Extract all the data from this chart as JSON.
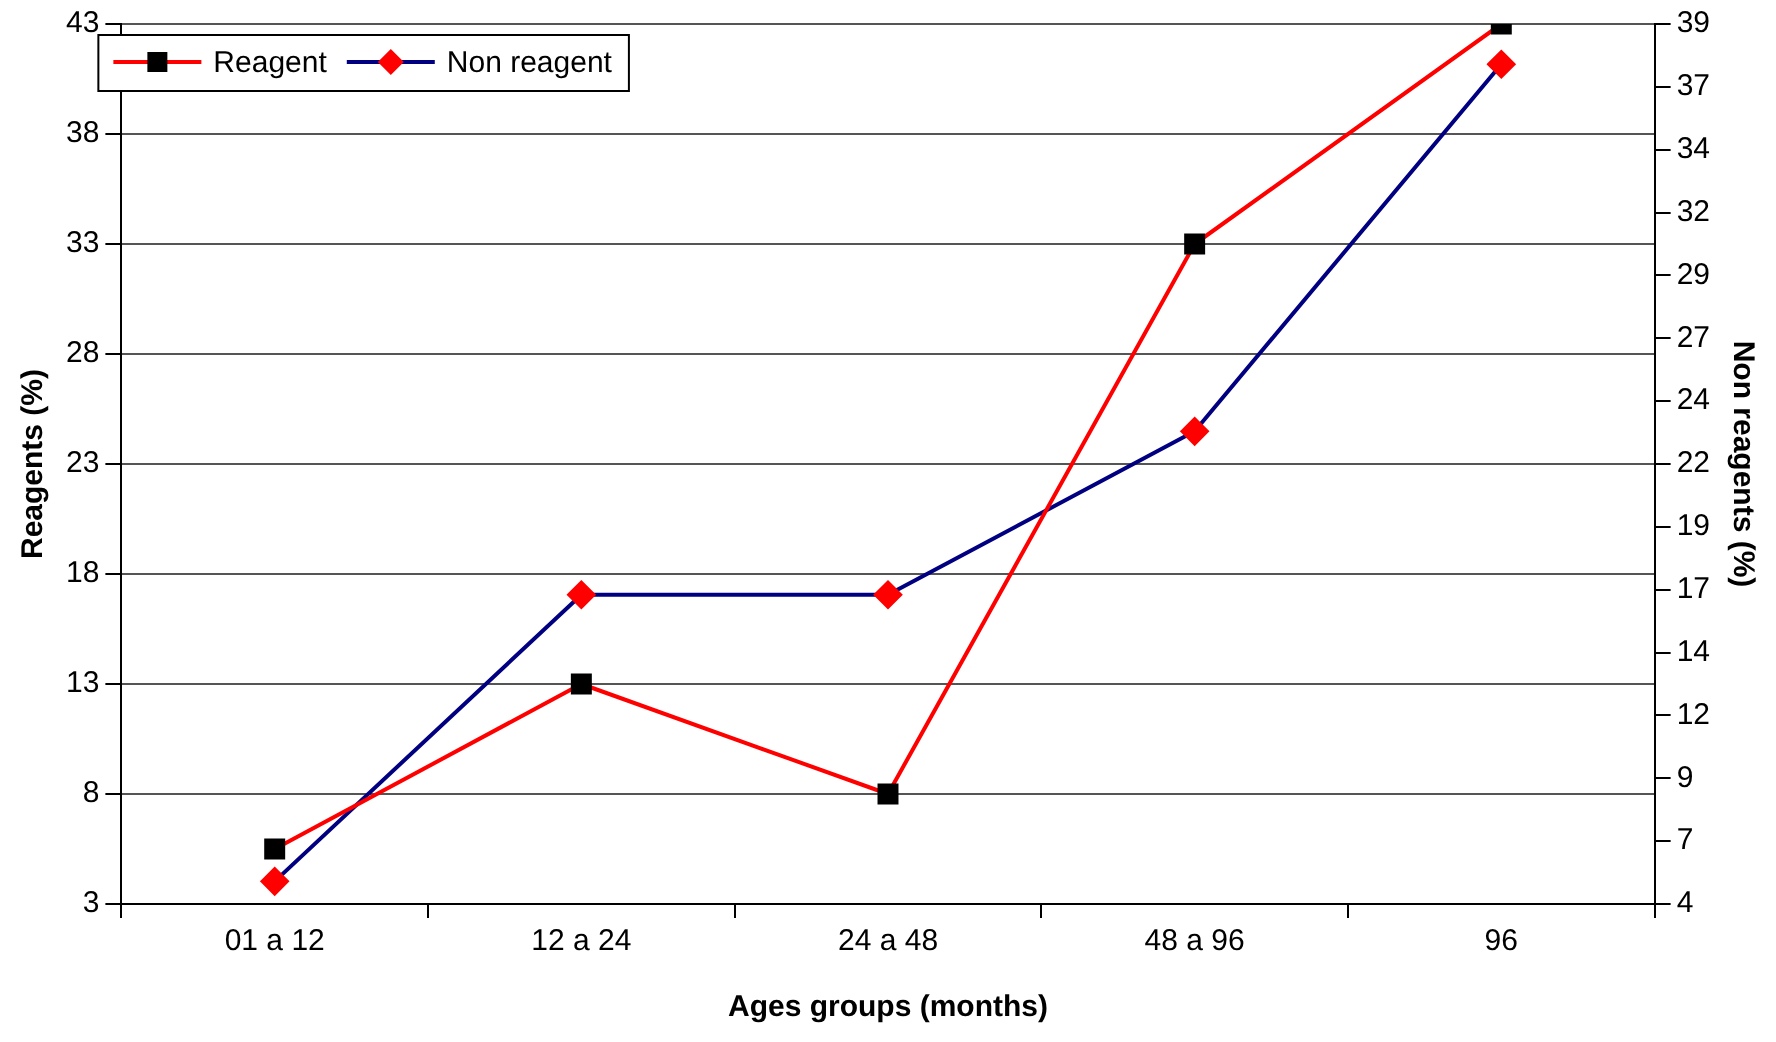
{
  "chart_data": {
    "type": "line",
    "xlabel": "Ages groups (months)",
    "ylabel": "Reagents (%)",
    "y2label": "Non reagents (%)",
    "categories": [
      "01 a 12",
      "12 a 24",
      "24 a 48",
      "48 a 96",
      "96"
    ],
    "series": [
      {
        "name": "Reagent",
        "color": "#ff0000",
        "colors": [
          "#000000",
          "#000000",
          "#000000",
          "#000000",
          "#000000"
        ],
        "marker": "square",
        "values": [
          5.5,
          13,
          8,
          33,
          43
        ]
      },
      {
        "name": "Non reagent",
        "color": "#000080",
        "colors": [
          "#ff0000",
          "#ff0000",
          "#ff0000",
          "#ff0000",
          "#ff0000"
        ],
        "marker": "diamond",
        "axis": "y2",
        "values": [
          4.9,
          16.3,
          16.3,
          22.8,
          37.4
        ]
      }
    ],
    "ylim": [
      3,
      43
    ],
    "yticks": [
      3,
      8,
      13,
      18,
      23,
      28,
      33,
      38,
      43
    ],
    "y2lim": [
      4,
      39
    ],
    "y2ticks": [
      4,
      {
        "value": 6.5,
        "label": "7"
      },
      9,
      {
        "value": 11.5,
        "label": "12"
      },
      14,
      {
        "value": 16.5,
        "label": "17"
      },
      19,
      {
        "value": 21.5,
        "label": "22"
      },
      24,
      {
        "value": 26.5,
        "label": "27"
      },
      29,
      {
        "value": 31.5,
        "label": "32"
      },
      34,
      {
        "value": 36.5,
        "label": "37"
      },
      39
    ],
    "grid": "y",
    "legend": "top left",
    "line_style": "solid"
  }
}
